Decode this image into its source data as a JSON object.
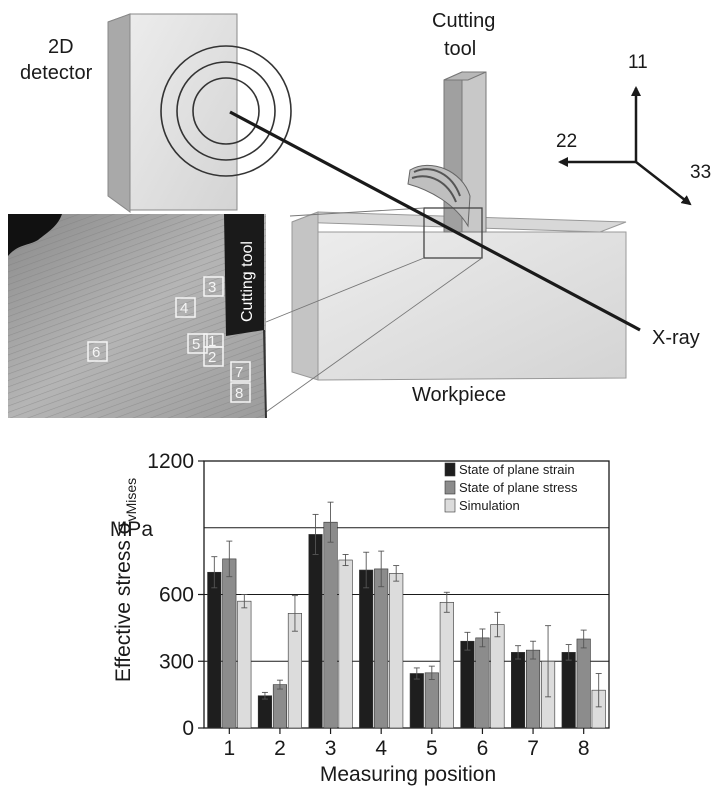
{
  "diagram": {
    "detector_label_1": "2D",
    "detector_label_2": "detector",
    "tool_label_1": "Cutting",
    "tool_label_2": "tool",
    "axis_11": "11",
    "axis_22": "22",
    "axis_33": "33",
    "xray_label": "X-ray",
    "workpiece_label": "Workpiece",
    "micro_tool_label": "Cutting tool",
    "positions": [
      "1",
      "2",
      "3",
      "4",
      "5",
      "6",
      "7",
      "8"
    ]
  },
  "chart_data": {
    "type": "bar",
    "categories": [
      "1",
      "2",
      "3",
      "4",
      "5",
      "6",
      "7",
      "8"
    ],
    "xlabel": "Measuring position",
    "ylabel_main": "Effective stress σ",
    "ylabel_sub": "vMises",
    "y_unit_label": "MPa",
    "ylim": [
      0,
      1200
    ],
    "yticks": [
      "0",
      "300",
      "600",
      "1200"
    ],
    "grid_values": [
      300,
      600,
      900
    ],
    "legend_position": "top-right",
    "series": [
      {
        "name": "State of plane strain",
        "color": "#1e1e1e",
        "values": [
          700,
          145,
          870,
          710,
          245,
          390,
          340,
          340
        ],
        "errors": [
          70,
          15,
          90,
          80,
          25,
          40,
          30,
          35
        ]
      },
      {
        "name": "State of plane stress",
        "color": "#8c8c8c",
        "values": [
          760,
          195,
          925,
          715,
          248,
          405,
          350,
          400
        ],
        "errors": [
          80,
          20,
          90,
          80,
          30,
          40,
          40,
          40
        ]
      },
      {
        "name": "Simulation",
        "color": "#dcdcdc",
        "values": [
          570,
          515,
          755,
          695,
          565,
          465,
          300,
          170
        ],
        "errors": [
          30,
          80,
          25,
          35,
          45,
          55,
          160,
          75
        ]
      }
    ]
  }
}
